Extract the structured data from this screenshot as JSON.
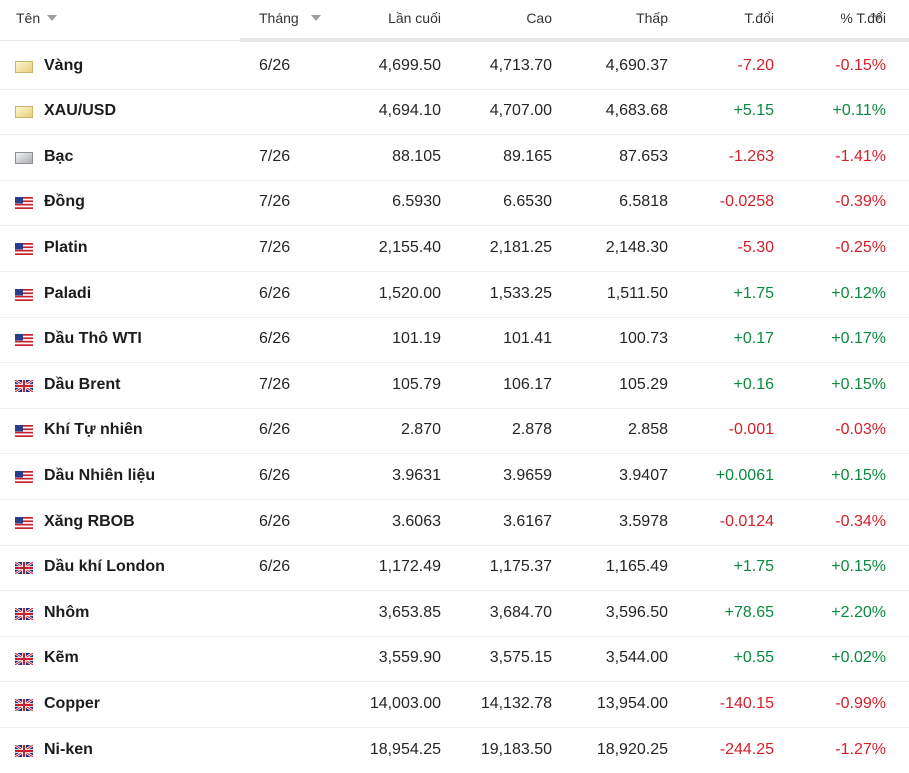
{
  "table": {
    "columns": [
      "Tên",
      "Tháng",
      "Lần cuối",
      "Cao",
      "Thấp",
      "T.đổi",
      "% T.đổi"
    ],
    "rows": [
      [
        "Vàng",
        "6/26",
        "4,699.50",
        "4,713.70",
        "4,690.37",
        "-7.20",
        "-0.15%"
      ],
      [
        "XAU/USD",
        null,
        "4,694.10",
        "4,707.00",
        "4,683.68",
        "+5.15",
        "+0.11%"
      ],
      [
        "Bạc",
        "7/26",
        "88.105",
        "89.165",
        "87.653",
        "-1.263",
        "-1.41%"
      ],
      [
        "Đồng",
        "7/26",
        "6.5930",
        "6.6530",
        "6.5818",
        "-0.0258",
        "-0.39%"
      ],
      [
        "Platin",
        "7/26",
        "2,155.40",
        "2,181.25",
        "2,148.30",
        "-5.30",
        "-0.25%"
      ],
      [
        "Paladi",
        "6/26",
        "1,520.00",
        "1,533.25",
        "1,511.50",
        "+1.75",
        "+0.12%"
      ],
      [
        "Dầu Thô WTI",
        "6/26",
        "101.19",
        "101.41",
        "100.73",
        "+0.17",
        "+0.17%"
      ],
      [
        "Dầu Brent",
        "7/26",
        "105.79",
        "106.17",
        "105.29",
        "+0.16",
        "+0.15%"
      ],
      [
        "Khí Tự nhiên",
        "6/26",
        "2.870",
        "2.878",
        "2.858",
        "-0.001",
        "-0.03%"
      ],
      [
        "Dầu Nhiên liệu",
        "6/26",
        "3.9631",
        "3.9659",
        "3.9407",
        "+0.0061",
        "+0.15%"
      ],
      [
        "Xăng RBOB",
        "6/26",
        "3.6063",
        "3.6167",
        "3.5978",
        "-0.0124",
        "-0.34%"
      ],
      [
        "Dầu khí London",
        "6/26",
        "1,172.49",
        "1,175.37",
        "1,165.49",
        "+1.75",
        "+0.15%"
      ],
      [
        "Nhôm",
        null,
        "3,653.85",
        "3,684.70",
        "3,596.50",
        "+78.65",
        "+2.20%"
      ],
      [
        "Kẽm",
        null,
        "3,559.90",
        "3,575.15",
        "3,544.00",
        "+0.55",
        "+0.02%"
      ],
      [
        "Copper",
        null,
        "14,003.00",
        "14,132.78",
        "13,954.00",
        "-140.15",
        "-0.99%"
      ],
      [
        "Ni-ken",
        null,
        "18,954.25",
        "19,183.50",
        "18,920.25",
        "-244.25",
        "-1.27%"
      ]
    ]
  }
}
